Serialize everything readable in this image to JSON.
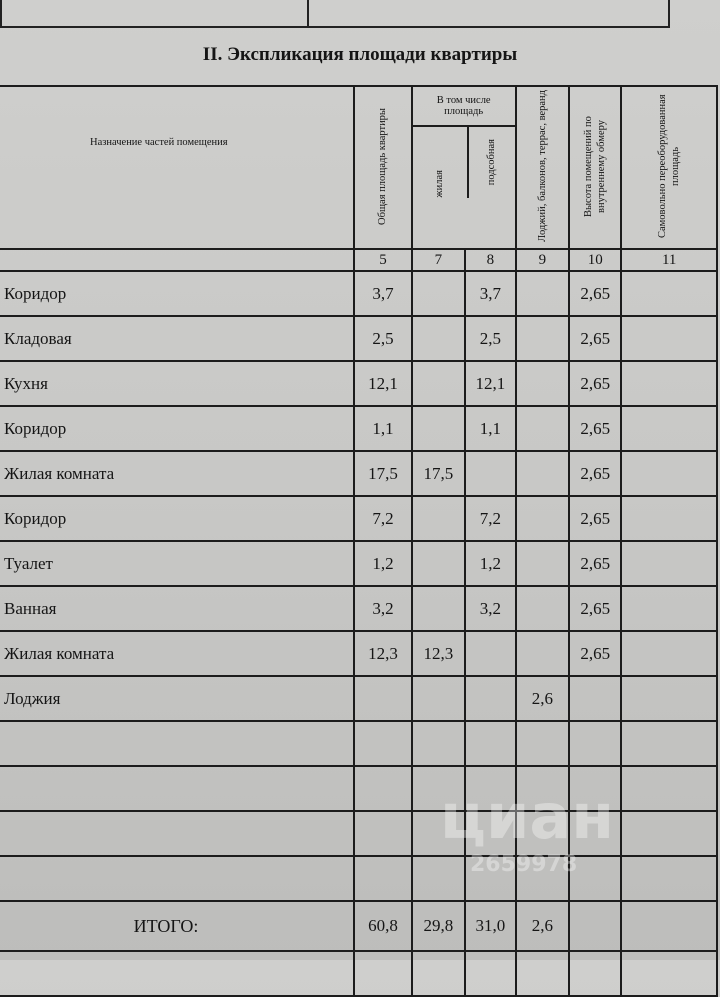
{
  "title": "II. Экспликация площади квартиры",
  "headers": {
    "purpose": "Назначение частей помещения",
    "total": "Общая площадь квартиры",
    "including": "В том числе площадь",
    "living": "жилая",
    "auxiliary": "подсобная",
    "loggias": "Лоджий, балконов, террас, веранд",
    "height": "Высота помещений по внутреннему обмеру",
    "unauthorized": "Самовольно переоборудованная площадь"
  },
  "column_numbers": [
    "5",
    "7",
    "8",
    "9",
    "10",
    "11"
  ],
  "rows": [
    {
      "name": "Коридор",
      "total": "3,7",
      "living": "",
      "aux": "3,7",
      "loggia": "",
      "height": "2,65",
      "unauth": ""
    },
    {
      "name": "Кладовая",
      "total": "2,5",
      "living": "",
      "aux": "2,5",
      "loggia": "",
      "height": "2,65",
      "unauth": ""
    },
    {
      "name": "Кухня",
      "total": "12,1",
      "living": "",
      "aux": "12,1",
      "loggia": "",
      "height": "2,65",
      "unauth": ""
    },
    {
      "name": "Коридор",
      "total": "1,1",
      "living": "",
      "aux": "1,1",
      "loggia": "",
      "height": "2,65",
      "unauth": ""
    },
    {
      "name": "Жилая комната",
      "total": "17,5",
      "living": "17,5",
      "aux": "",
      "loggia": "",
      "height": "2,65",
      "unauth": ""
    },
    {
      "name": "Коридор",
      "total": "7,2",
      "living": "",
      "aux": "7,2",
      "loggia": "",
      "height": "2,65",
      "unauth": ""
    },
    {
      "name": "Туалет",
      "total": "1,2",
      "living": "",
      "aux": "1,2",
      "loggia": "",
      "height": "2,65",
      "unauth": ""
    },
    {
      "name": "Ванная",
      "total": "3,2",
      "living": "",
      "aux": "3,2",
      "loggia": "",
      "height": "2,65",
      "unauth": ""
    },
    {
      "name": "Жилая комната",
      "total": "12,3",
      "living": "12,3",
      "aux": "",
      "loggia": "",
      "height": "2,65",
      "unauth": ""
    },
    {
      "name": "Лоджия",
      "total": "",
      "living": "",
      "aux": "",
      "loggia": "2,6",
      "height": "",
      "unauth": ""
    },
    {
      "name": "",
      "total": "",
      "living": "",
      "aux": "",
      "loggia": "",
      "height": "",
      "unauth": ""
    },
    {
      "name": "",
      "total": "",
      "living": "",
      "aux": "",
      "loggia": "",
      "height": "",
      "unauth": ""
    },
    {
      "name": "",
      "total": "",
      "living": "",
      "aux": "",
      "loggia": "",
      "height": "",
      "unauth": ""
    },
    {
      "name": "",
      "total": "",
      "living": "",
      "aux": "",
      "loggia": "",
      "height": "",
      "unauth": ""
    }
  ],
  "totals": {
    "label": "ИТОГО:",
    "total": "60,8",
    "living": "29,8",
    "aux": "31,0",
    "loggia": "2,6",
    "height": "",
    "unauth": ""
  },
  "watermark": {
    "logo": "циан",
    "number": "2659978"
  }
}
